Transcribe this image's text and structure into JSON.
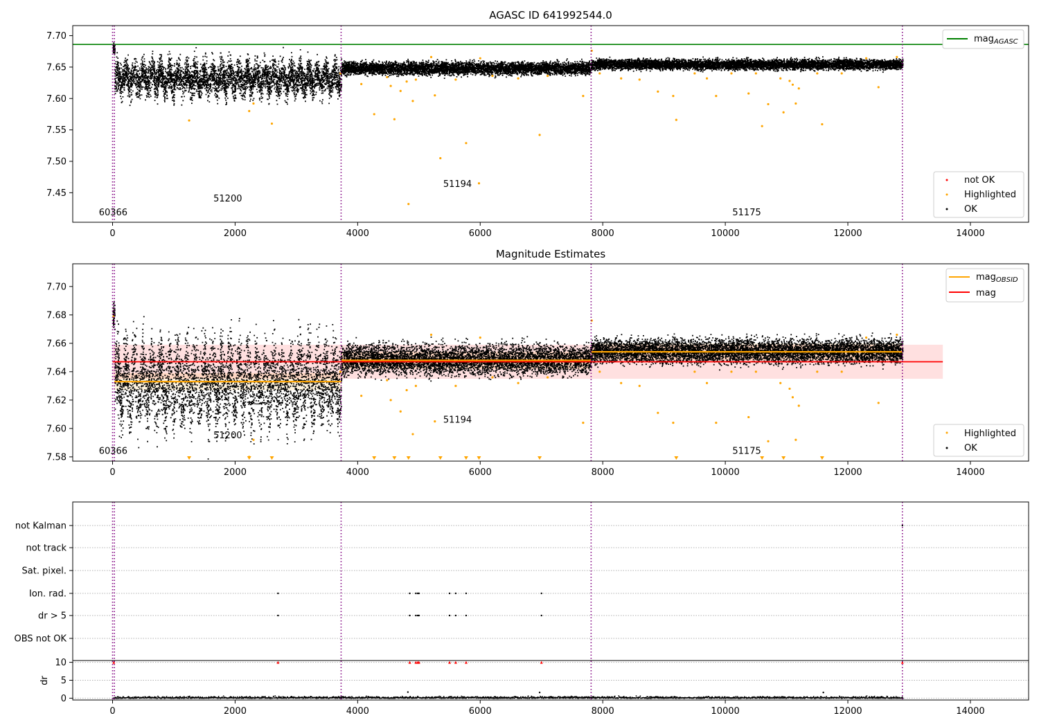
{
  "chart_data": [
    {
      "type": "scatter",
      "title": "AGASC ID 641992544.0",
      "xlim": [
        -650,
        14950
      ],
      "ylim": [
        7.403,
        7.716
      ],
      "x_ticks": [
        0,
        2000,
        4000,
        6000,
        8000,
        10000,
        12000,
        14000
      ],
      "y_ticks": [
        7.45,
        7.5,
        7.55,
        7.6,
        7.65,
        7.7
      ],
      "y_tick_labels": [
        "7.45",
        "7.50",
        "7.55",
        "7.60",
        "7.65",
        "7.70"
      ],
      "reference_line": {
        "name": "mag_AGASC",
        "value": 7.686,
        "color": "#008000"
      },
      "segment_boundaries": [
        0,
        30,
        3730,
        7810,
        12890
      ],
      "segments": [
        {
          "label": "60366",
          "x": [
            0,
            30
          ],
          "mean": 7.68,
          "spread": 0.004,
          "annot_x": 10,
          "annot_y": 7.414
        },
        {
          "label": "51200",
          "x": [
            30,
            3730
          ],
          "mean": 7.633,
          "spread": 0.013,
          "oscillation": true,
          "annot_x": 1880,
          "annot_y": 7.436
        },
        {
          "label": "51194",
          "x": [
            3730,
            7810
          ],
          "mean": 7.649,
          "spread": 0.005,
          "annot_x": 5630,
          "annot_y": 7.459
        },
        {
          "label": "51175",
          "x": [
            7810,
            12890
          ],
          "mean": 7.655,
          "spread": 0.004,
          "annot_x": 10350,
          "annot_y": 7.414
        }
      ],
      "highlighted_points": [
        [
          1250,
          7.565
        ],
        [
          2230,
          7.58
        ],
        [
          2300,
          7.592
        ],
        [
          2600,
          7.56
        ],
        [
          3720,
          7.64
        ],
        [
          4060,
          7.623
        ],
        [
          4270,
          7.575
        ],
        [
          4480,
          7.634
        ],
        [
          4540,
          7.62
        ],
        [
          4600,
          7.567
        ],
        [
          4700,
          7.612
        ],
        [
          4800,
          7.627
        ],
        [
          4830,
          7.432
        ],
        [
          4900,
          7.596
        ],
        [
          4950,
          7.63
        ],
        [
          5200,
          7.666
        ],
        [
          5260,
          7.605
        ],
        [
          5350,
          7.505
        ],
        [
          5600,
          7.63
        ],
        [
          5770,
          7.529
        ],
        [
          5980,
          7.465
        ],
        [
          6000,
          7.664
        ],
        [
          6200,
          7.636
        ],
        [
          6620,
          7.632
        ],
        [
          6970,
          7.542
        ],
        [
          7100,
          7.636
        ],
        [
          7680,
          7.604
        ],
        [
          7820,
          7.676
        ],
        [
          7950,
          7.64
        ],
        [
          8300,
          7.632
        ],
        [
          8600,
          7.63
        ],
        [
          8900,
          7.611
        ],
        [
          9150,
          7.604
        ],
        [
          9200,
          7.566
        ],
        [
          9500,
          7.64
        ],
        [
          9700,
          7.632
        ],
        [
          9850,
          7.604
        ],
        [
          10100,
          7.64
        ],
        [
          10380,
          7.608
        ],
        [
          10500,
          7.64
        ],
        [
          10600,
          7.556
        ],
        [
          10700,
          7.591
        ],
        [
          10900,
          7.632
        ],
        [
          10950,
          7.578
        ],
        [
          11050,
          7.628
        ],
        [
          11100,
          7.622
        ],
        [
          11150,
          7.592
        ],
        [
          11200,
          7.616
        ],
        [
          11500,
          7.64
        ],
        [
          11580,
          7.559
        ],
        [
          11900,
          7.64
        ],
        [
          12300,
          7.664
        ],
        [
          12500,
          7.618
        ],
        [
          12800,
          7.666
        ]
      ],
      "legend": [
        {
          "name": "mag",
          "sub": "AGASC",
          "kind": "line",
          "color": "#008000"
        },
        {
          "name": "not OK",
          "kind": "point",
          "color": "#ff0000"
        },
        {
          "name": "Highlighted",
          "kind": "point",
          "color": "#ffa500"
        },
        {
          "name": "OK",
          "kind": "point",
          "color": "#000000"
        }
      ]
    },
    {
      "type": "scatter",
      "title": "Magnitude Estimates",
      "xlim": [
        -650,
        14950
      ],
      "ylim": [
        7.577,
        7.716
      ],
      "x_ticks": [
        0,
        2000,
        4000,
        6000,
        8000,
        10000,
        12000,
        14000
      ],
      "y_ticks": [
        7.58,
        7.6,
        7.62,
        7.64,
        7.66,
        7.68,
        7.7
      ],
      "y_tick_labels": [
        "7.58",
        "7.60",
        "7.62",
        "7.64",
        "7.66",
        "7.68",
        "7.70"
      ],
      "mag_line": {
        "name": "mag",
        "value": 7.647,
        "band": [
          7.635,
          7.659
        ],
        "xrange": [
          0,
          13550
        ],
        "color": "#ff0000"
      },
      "segment_boundaries": [
        0,
        30,
        3730,
        7810,
        12890
      ],
      "obsid_means": [
        {
          "x": [
            0,
            30
          ],
          "value": 7.679
        },
        {
          "x": [
            30,
            3730
          ],
          "value": 7.633
        },
        {
          "x": [
            3730,
            7810
          ],
          "value": 7.648
        },
        {
          "x": [
            7810,
            12890
          ],
          "value": 7.654
        }
      ],
      "segments": [
        {
          "label": "60366",
          "annot_x": 10,
          "annot_y": 7.582
        },
        {
          "label": "51200",
          "annot_x": 1880,
          "annot_y": 7.593
        },
        {
          "label": "51194",
          "annot_x": 5630,
          "annot_y": 7.604
        },
        {
          "label": "51175",
          "annot_x": 10350,
          "annot_y": 7.582
        }
      ],
      "off_scale_markers_x": [
        1250,
        2230,
        2600,
        4270,
        4600,
        4830,
        5350,
        5770,
        5980,
        6970,
        9200,
        10600,
        10950,
        11580
      ],
      "legend_top": [
        {
          "name": "mag",
          "sub": "OBSID",
          "kind": "line",
          "color": "#ffa500"
        },
        {
          "name": "mag",
          "kind": "line",
          "color": "#ff0000"
        }
      ],
      "legend_bottom": [
        {
          "name": "Highlighted",
          "kind": "point",
          "color": "#ffa500"
        },
        {
          "name": "OK",
          "kind": "point",
          "color": "#000000"
        }
      ]
    },
    {
      "type": "scatter",
      "title": "",
      "xlim": [
        -650,
        14950
      ],
      "x_ticks": [
        0,
        2000,
        4000,
        6000,
        8000,
        10000,
        12000,
        14000
      ],
      "flags": [
        "not Kalman",
        "not track",
        "Sat. pixel.",
        "Ion. rad.",
        "dr > 5",
        "OBS not OK"
      ],
      "flag_points": {
        "not Kalman": [
          12890
        ],
        "Ion. rad.": [
          2700,
          4850,
          4950,
          4980,
          5000,
          5500,
          5600,
          5770,
          7000
        ],
        "dr > 5": [
          2700,
          4850,
          4950,
          4980,
          5000,
          5500,
          5600,
          5770,
          7000
        ]
      },
      "dr_panel": {
        "ylabel": "dr",
        "y_ticks": [
          0,
          5,
          10
        ],
        "ylim": [
          -0.5,
          10.5
        ],
        "clipped_points_x": [
          20,
          2700,
          4850,
          4950,
          4980,
          5000,
          5500,
          5600,
          5770,
          7000,
          12890
        ],
        "outliers": [
          [
            4820,
            1.7
          ],
          [
            6970,
            1.6
          ],
          [
            11600,
            1.6
          ]
        ]
      }
    }
  ]
}
